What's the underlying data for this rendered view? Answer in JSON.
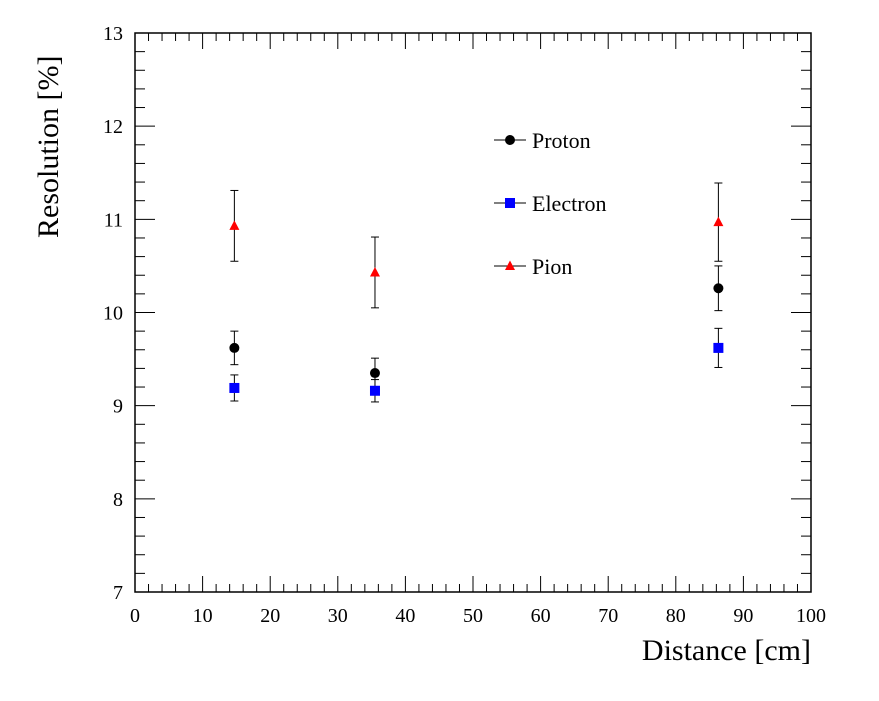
{
  "chart_data": {
    "type": "scatter",
    "title": "",
    "xlabel": "Distance [cm]",
    "ylabel": "Resolution [%]",
    "xlim": [
      0,
      100
    ],
    "ylim": [
      7,
      13
    ],
    "grid": false,
    "legend_placement": "top-center",
    "x_ticks": [
      "0",
      "10",
      "20",
      "30",
      "40",
      "50",
      "60",
      "70",
      "80",
      "90",
      "100"
    ],
    "y_ticks": [
      "7",
      "8",
      "9",
      "10",
      "11",
      "12",
      "13"
    ],
    "series": [
      {
        "name": "Proton",
        "color": "#000000",
        "marker": "circle",
        "x": [
          14.7,
          35.5,
          86.3
        ],
        "y": [
          9.62,
          9.35,
          10.26
        ],
        "yerr": [
          0.18,
          0.16,
          0.24
        ]
      },
      {
        "name": "Electron",
        "color": "#0000ff",
        "marker": "square",
        "x": [
          14.7,
          35.5,
          86.3
        ],
        "y": [
          9.19,
          9.16,
          9.62
        ],
        "yerr": [
          0.14,
          0.12,
          0.21
        ]
      },
      {
        "name": "Pion",
        "color": "#ff0000",
        "marker": "triangle",
        "x": [
          14.7,
          35.5,
          86.3
        ],
        "y": [
          10.93,
          10.43,
          10.97
        ],
        "yerr": [
          0.38,
          0.38,
          0.42
        ]
      }
    ]
  }
}
